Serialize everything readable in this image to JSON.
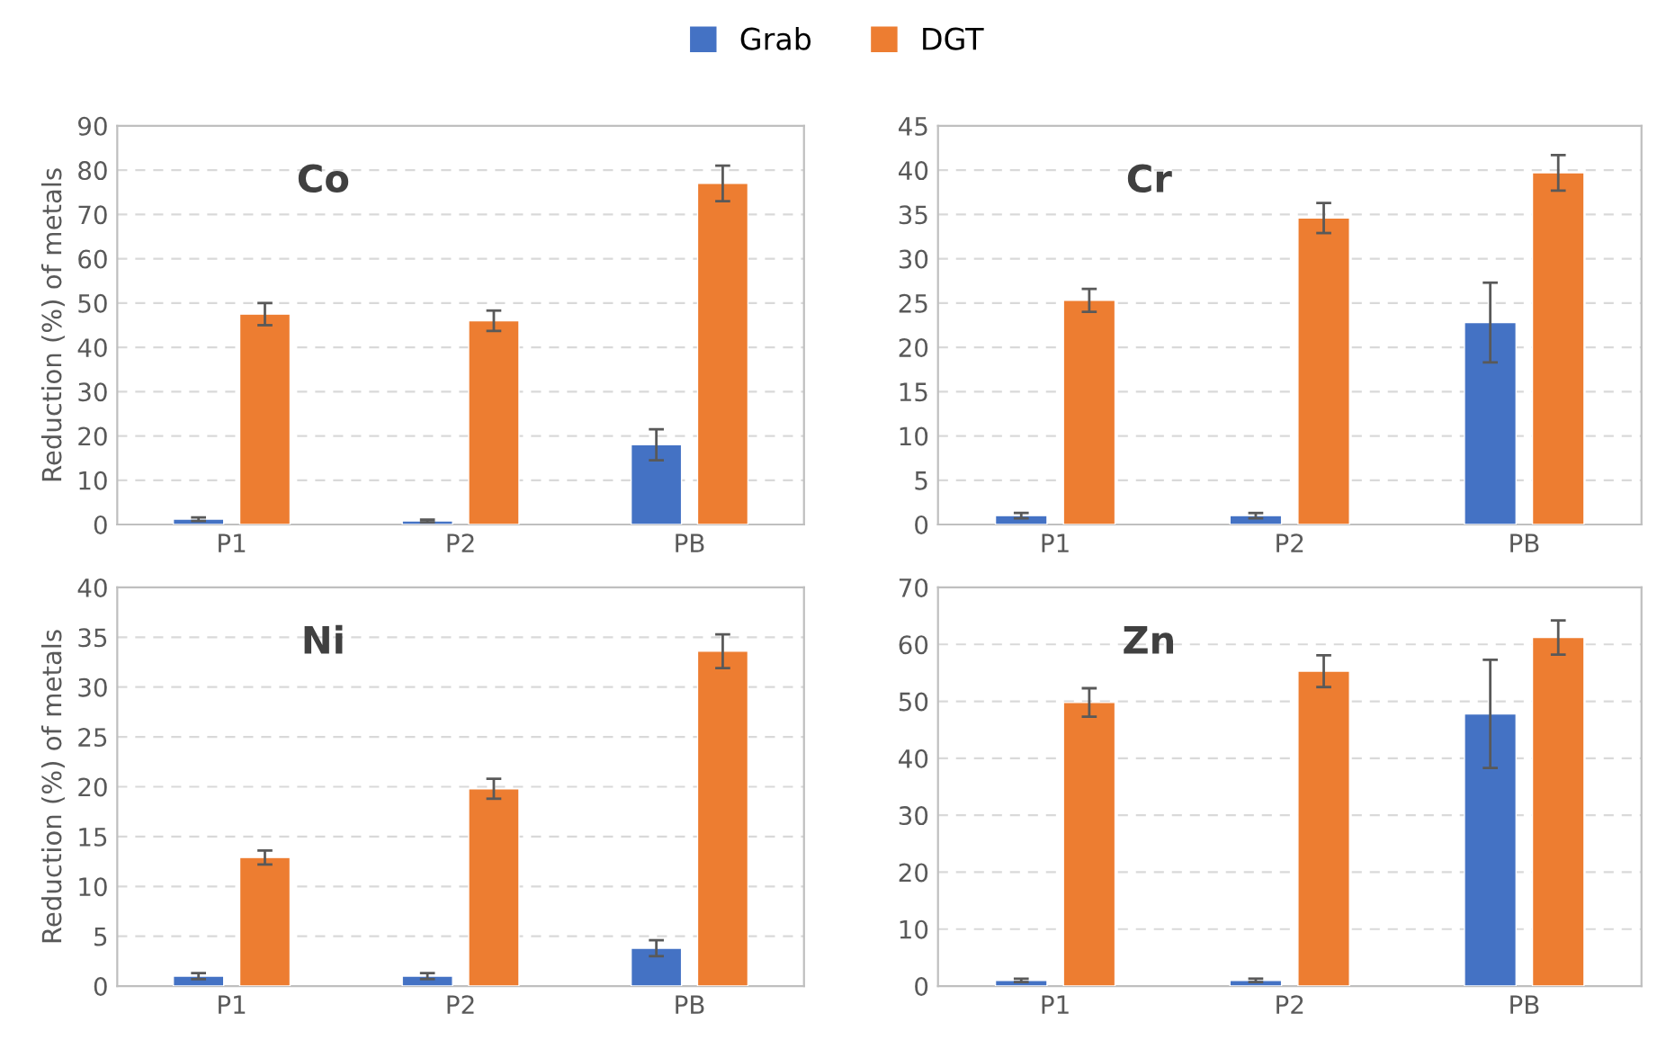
{
  "chart_data": [
    {
      "type": "bar",
      "title": "Co",
      "ylabel": "Reduction (%) of metals",
      "categories": [
        "P1",
        "P2",
        "PB"
      ],
      "legend": "top",
      "grid": "y",
      "ylim": [
        0,
        90
      ],
      "yticks": [
        0,
        10,
        20,
        30,
        40,
        50,
        60,
        70,
        80,
        90
      ],
      "series": [
        {
          "name": "Grab",
          "color": "#4472c4",
          "values": [
            1.2,
            0.8,
            18
          ],
          "errors": [
            0.4,
            0.3,
            3.5
          ]
        },
        {
          "name": "DGT",
          "color": "#ed7d31",
          "values": [
            47.5,
            46,
            77
          ],
          "errors": [
            2.5,
            2.3,
            4
          ]
        }
      ]
    },
    {
      "type": "bar",
      "title": "Cr",
      "categories": [
        "P1",
        "P2",
        "PB"
      ],
      "grid": "y",
      "ylim": [
        0,
        45
      ],
      "yticks": [
        0,
        5,
        10,
        15,
        20,
        25,
        30,
        35,
        40,
        45
      ],
      "series": [
        {
          "color": "#4472c4",
          "values": [
            1,
            1,
            22.8
          ],
          "errors": [
            0.3,
            0.3,
            4.5
          ]
        },
        {
          "color": "#ed7d31",
          "values": [
            25.3,
            34.6,
            39.7
          ],
          "errors": [
            1.3,
            1.7,
            2
          ]
        }
      ]
    },
    {
      "type": "bar",
      "title": "Ni",
      "ylabel": "Reduction (%) of metals",
      "categories": [
        "P1",
        "P2",
        "PB"
      ],
      "grid": "y",
      "ylim": [
        0,
        40
      ],
      "yticks": [
        0,
        5,
        10,
        15,
        20,
        25,
        30,
        35,
        40
      ],
      "series": [
        {
          "color": "#4472c4",
          "values": [
            1,
            1,
            3.8
          ],
          "errors": [
            0.3,
            0.3,
            0.8
          ]
        },
        {
          "color": "#ed7d31",
          "values": [
            12.9,
            19.8,
            33.6
          ],
          "errors": [
            0.7,
            1,
            1.7
          ]
        }
      ]
    },
    {
      "type": "bar",
      "title": "Zn",
      "categories": [
        "P1",
        "P2",
        "PB"
      ],
      "grid": "y",
      "ylim": [
        0,
        70
      ],
      "yticks": [
        0,
        10,
        20,
        30,
        40,
        50,
        60,
        70
      ],
      "series": [
        {
          "color": "#4472c4",
          "values": [
            1,
            1,
            47.8
          ],
          "errors": [
            0.3,
            0.3,
            9.5
          ]
        },
        {
          "color": "#ed7d31",
          "values": [
            49.8,
            55.3,
            61.2
          ],
          "errors": [
            2.5,
            2.8,
            3
          ]
        }
      ]
    }
  ]
}
